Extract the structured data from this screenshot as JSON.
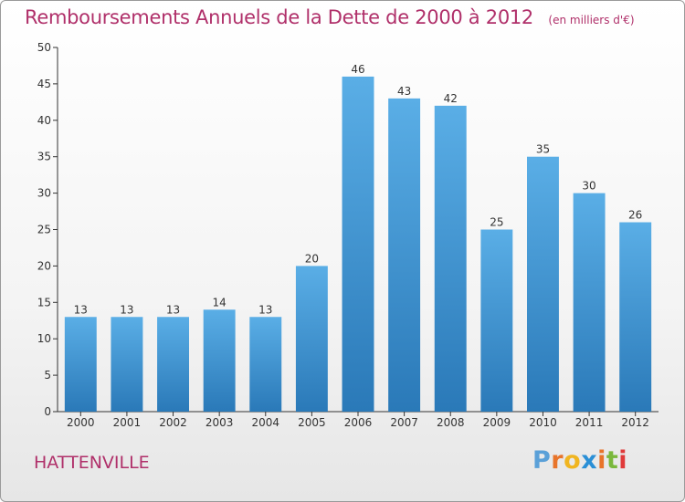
{
  "header": {
    "title": "Remboursements Annuels de la Dette de 2000 à 2012",
    "unit": "(en milliers d'€)"
  },
  "footer": {
    "city": "HATTENVILLE",
    "logo_letters": [
      "P",
      "r",
      "o",
      "x",
      "i",
      "t",
      "i"
    ],
    "logo_colors": [
      "#5aa0d8",
      "#e8742a",
      "#f0b520",
      "#2a8fd6",
      "#e8742a",
      "#7ab83c",
      "#e03a3a"
    ]
  },
  "colors": {
    "title": "#b0306a",
    "bar_top": "#5aaee6",
    "bar_bottom": "#2a79b8",
    "axis": "#333333"
  },
  "chart_data": {
    "type": "bar",
    "title": "Remboursements Annuels de la Dette de 2000 à 2012",
    "subtitle": "(en milliers d'€)",
    "xlabel": "",
    "ylabel": "",
    "categories": [
      "2000",
      "2001",
      "2002",
      "2003",
      "2004",
      "2005",
      "2006",
      "2007",
      "2008",
      "2009",
      "2010",
      "2011",
      "2012"
    ],
    "values": [
      13,
      13,
      13,
      14,
      13,
      20,
      46,
      43,
      42,
      25,
      35,
      30,
      26
    ],
    "ylim": [
      0,
      50
    ],
    "yticks": [
      0,
      5,
      10,
      15,
      20,
      25,
      30,
      35,
      40,
      45,
      50
    ],
    "grid": false,
    "data_labels": true
  }
}
